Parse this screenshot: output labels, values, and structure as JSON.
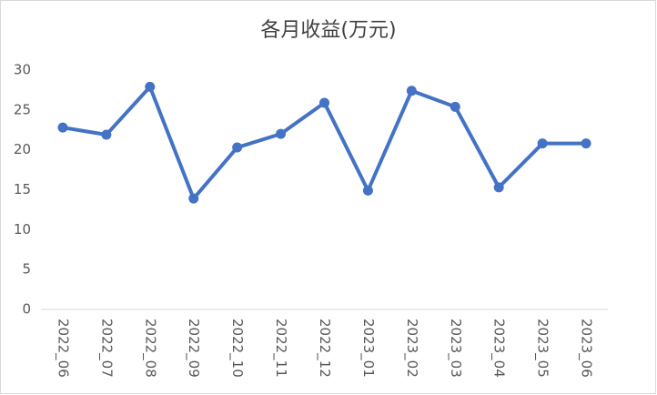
{
  "chart_data": {
    "type": "line",
    "title": "各月收益(万元)",
    "categories": [
      "2022_06",
      "2022_07",
      "2022_08",
      "2022_09",
      "2022_10",
      "2022_11",
      "2022_12",
      "2023_01",
      "2023_02",
      "2023_03",
      "2023_04",
      "2023_05",
      "2023_06"
    ],
    "values": [
      22.8,
      21.9,
      27.9,
      13.9,
      20.3,
      22.0,
      25.9,
      14.9,
      27.4,
      25.4,
      15.3,
      20.8,
      20.8
    ],
    "color": "#4472c4",
    "ylim": [
      0,
      30
    ],
    "yticks": [
      0,
      5,
      10,
      15,
      20,
      25,
      30
    ],
    "grid": false
  }
}
